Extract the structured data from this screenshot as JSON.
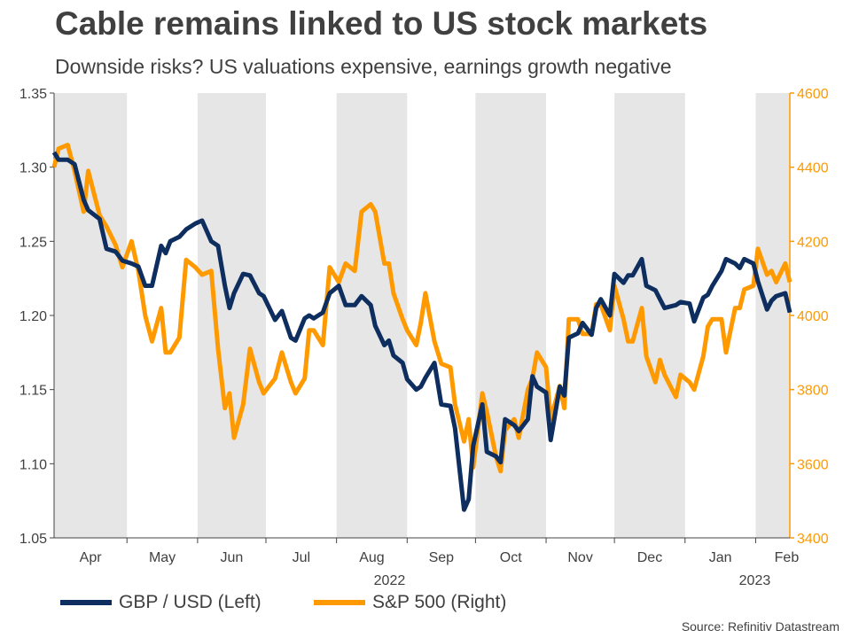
{
  "header": {
    "title": "Cable remains linked to US stock markets",
    "subtitle": "Downside risks? US valuations expensive, earnings growth negative"
  },
  "source": "Source: Refinitiv Datastream",
  "legend": [
    {
      "label": "GBP / USD (Left)",
      "color": "#0d2e5e"
    },
    {
      "label": "S&P 500 (Right)",
      "color": "#ff9900"
    }
  ],
  "chart_data": {
    "type": "line",
    "x_start": "2022-03-30",
    "x_end": "2023-02-16",
    "months": [
      "Apr",
      "May",
      "Jun",
      "Jul",
      "Aug",
      "Sep",
      "Oct",
      "Nov",
      "Dec",
      "Jan",
      "Feb"
    ],
    "years": [
      {
        "label": "2022",
        "under": "Aug"
      },
      {
        "label": "2023",
        "under": "Feb"
      }
    ],
    "shaded_months": [
      "Apr",
      "Jun",
      "Aug",
      "Oct",
      "Dec",
      "Feb"
    ],
    "y_left": {
      "min": 1.05,
      "max": 1.35,
      "ticks": [
        "1.05",
        "1.10",
        "1.15",
        "1.20",
        "1.25",
        "1.30",
        "1.35"
      ]
    },
    "y_right": {
      "min": 3400,
      "max": 4600,
      "ticks": [
        "3400",
        "3600",
        "3800",
        "4000",
        "4200",
        "4400",
        "4600"
      ],
      "color": "#ff9900"
    },
    "legend_position": "bottom",
    "grid": false,
    "series": [
      {
        "name": "GBP / USD (Left)",
        "axis": "left",
        "color": "#0d2e5e",
        "points": [
          [
            "2022-03-30",
            1.31
          ],
          [
            "2022-04-01",
            1.305
          ],
          [
            "2022-04-05",
            1.305
          ],
          [
            "2022-04-08",
            1.302
          ],
          [
            "2022-04-12",
            1.278
          ],
          [
            "2022-04-14",
            1.271
          ],
          [
            "2022-04-19",
            1.265
          ],
          [
            "2022-04-22",
            1.245
          ],
          [
            "2022-04-26",
            1.243
          ],
          [
            "2022-04-29",
            1.237
          ],
          [
            "2022-05-03",
            1.235
          ],
          [
            "2022-05-06",
            1.233
          ],
          [
            "2022-05-09",
            1.22
          ],
          [
            "2022-05-12",
            1.22
          ],
          [
            "2022-05-16",
            1.247
          ],
          [
            "2022-05-18",
            1.242
          ],
          [
            "2022-05-20",
            1.25
          ],
          [
            "2022-05-24",
            1.253
          ],
          [
            "2022-05-27",
            1.258
          ],
          [
            "2022-05-31",
            1.262
          ],
          [
            "2022-06-03",
            1.264
          ],
          [
            "2022-06-07",
            1.25
          ],
          [
            "2022-06-10",
            1.247
          ],
          [
            "2022-06-13",
            1.22
          ],
          [
            "2022-06-15",
            1.205
          ],
          [
            "2022-06-17",
            1.215
          ],
          [
            "2022-06-21",
            1.228
          ],
          [
            "2022-06-24",
            1.227
          ],
          [
            "2022-06-28",
            1.215
          ],
          [
            "2022-06-30",
            1.213
          ],
          [
            "2022-07-05",
            1.197
          ],
          [
            "2022-07-08",
            1.203
          ],
          [
            "2022-07-12",
            1.185
          ],
          [
            "2022-07-14",
            1.183
          ],
          [
            "2022-07-18",
            1.198
          ],
          [
            "2022-07-20",
            1.2
          ],
          [
            "2022-07-22",
            1.198
          ],
          [
            "2022-07-26",
            1.202
          ],
          [
            "2022-07-29",
            1.215
          ],
          [
            "2022-08-02",
            1.22
          ],
          [
            "2022-08-05",
            1.207
          ],
          [
            "2022-08-09",
            1.207
          ],
          [
            "2022-08-12",
            1.213
          ],
          [
            "2022-08-16",
            1.207
          ],
          [
            "2022-08-18",
            1.193
          ],
          [
            "2022-08-22",
            1.18
          ],
          [
            "2022-08-24",
            1.183
          ],
          [
            "2022-08-26",
            1.173
          ],
          [
            "2022-08-30",
            1.168
          ],
          [
            "2022-09-01",
            1.157
          ],
          [
            "2022-09-05",
            1.15
          ],
          [
            "2022-09-07",
            1.152
          ],
          [
            "2022-09-09",
            1.158
          ],
          [
            "2022-09-13",
            1.168
          ],
          [
            "2022-09-16",
            1.14
          ],
          [
            "2022-09-20",
            1.139
          ],
          [
            "2022-09-22",
            1.124
          ],
          [
            "2022-09-26",
            1.069
          ],
          [
            "2022-09-28",
            1.076
          ],
          [
            "2022-09-30",
            1.112
          ],
          [
            "2022-10-04",
            1.14
          ],
          [
            "2022-10-06",
            1.108
          ],
          [
            "2022-10-10",
            1.105
          ],
          [
            "2022-10-12",
            1.101
          ],
          [
            "2022-10-14",
            1.13
          ],
          [
            "2022-10-18",
            1.126
          ],
          [
            "2022-10-20",
            1.122
          ],
          [
            "2022-10-24",
            1.13
          ],
          [
            "2022-10-26",
            1.159
          ],
          [
            "2022-10-28",
            1.152
          ],
          [
            "2022-11-01",
            1.148
          ],
          [
            "2022-11-03",
            1.116
          ],
          [
            "2022-11-07",
            1.152
          ],
          [
            "2022-11-09",
            1.146
          ],
          [
            "2022-11-11",
            1.185
          ],
          [
            "2022-11-15",
            1.188
          ],
          [
            "2022-11-17",
            1.195
          ],
          [
            "2022-11-21",
            1.187
          ],
          [
            "2022-11-23",
            1.205
          ],
          [
            "2022-11-25",
            1.211
          ],
          [
            "2022-11-29",
            1.2
          ],
          [
            "2022-12-01",
            1.228
          ],
          [
            "2022-12-05",
            1.222
          ],
          [
            "2022-12-07",
            1.227
          ],
          [
            "2022-12-09",
            1.227
          ],
          [
            "2022-12-13",
            1.238
          ],
          [
            "2022-12-15",
            1.22
          ],
          [
            "2022-12-19",
            1.217
          ],
          [
            "2022-12-21",
            1.211
          ],
          [
            "2022-12-23",
            1.205
          ],
          [
            "2022-12-28",
            1.207
          ],
          [
            "2022-12-30",
            1.209
          ],
          [
            "2023-01-03",
            1.208
          ],
          [
            "2023-01-05",
            1.196
          ],
          [
            "2023-01-09",
            1.212
          ],
          [
            "2023-01-11",
            1.214
          ],
          [
            "2023-01-13",
            1.22
          ],
          [
            "2023-01-17",
            1.23
          ],
          [
            "2023-01-19",
            1.238
          ],
          [
            "2023-01-23",
            1.235
          ],
          [
            "2023-01-25",
            1.232
          ],
          [
            "2023-01-27",
            1.238
          ],
          [
            "2023-01-31",
            1.235
          ],
          [
            "2023-02-02",
            1.223
          ],
          [
            "2023-02-06",
            1.204
          ],
          [
            "2023-02-08",
            1.21
          ],
          [
            "2023-02-10",
            1.213
          ],
          [
            "2023-02-14",
            1.215
          ],
          [
            "2023-02-16",
            1.202
          ]
        ]
      },
      {
        "name": "S&P 500 (Right)",
        "axis": "right",
        "color": "#ff9900",
        "points": [
          [
            "2022-03-30",
            4400
          ],
          [
            "2022-04-01",
            4450
          ],
          [
            "2022-04-05",
            4460
          ],
          [
            "2022-04-08",
            4390
          ],
          [
            "2022-04-12",
            4280
          ],
          [
            "2022-04-14",
            4390
          ],
          [
            "2022-04-19",
            4270
          ],
          [
            "2022-04-22",
            4240
          ],
          [
            "2022-04-26",
            4190
          ],
          [
            "2022-04-29",
            4130
          ],
          [
            "2022-05-03",
            4200
          ],
          [
            "2022-05-06",
            4120
          ],
          [
            "2022-05-09",
            4000
          ],
          [
            "2022-05-12",
            3930
          ],
          [
            "2022-05-16",
            4020
          ],
          [
            "2022-05-18",
            3900
          ],
          [
            "2022-05-20",
            3900
          ],
          [
            "2022-05-24",
            3940
          ],
          [
            "2022-05-27",
            4150
          ],
          [
            "2022-05-31",
            4130
          ],
          [
            "2022-06-03",
            4110
          ],
          [
            "2022-06-07",
            4120
          ],
          [
            "2022-06-10",
            3910
          ],
          [
            "2022-06-13",
            3750
          ],
          [
            "2022-06-15",
            3790
          ],
          [
            "2022-06-17",
            3670
          ],
          [
            "2022-06-21",
            3760
          ],
          [
            "2022-06-24",
            3910
          ],
          [
            "2022-06-28",
            3820
          ],
          [
            "2022-06-30",
            3790
          ],
          [
            "2022-07-05",
            3830
          ],
          [
            "2022-07-08",
            3900
          ],
          [
            "2022-07-12",
            3820
          ],
          [
            "2022-07-14",
            3790
          ],
          [
            "2022-07-18",
            3830
          ],
          [
            "2022-07-20",
            3960
          ],
          [
            "2022-07-22",
            3960
          ],
          [
            "2022-07-26",
            3920
          ],
          [
            "2022-07-29",
            4130
          ],
          [
            "2022-08-02",
            4090
          ],
          [
            "2022-08-05",
            4140
          ],
          [
            "2022-08-09",
            4120
          ],
          [
            "2022-08-12",
            4280
          ],
          [
            "2022-08-16",
            4300
          ],
          [
            "2022-08-18",
            4280
          ],
          [
            "2022-08-22",
            4140
          ],
          [
            "2022-08-24",
            4140
          ],
          [
            "2022-08-26",
            4060
          ],
          [
            "2022-08-30",
            3990
          ],
          [
            "2022-09-01",
            3960
          ],
          [
            "2022-09-05",
            3920
          ],
          [
            "2022-09-07",
            3980
          ],
          [
            "2022-09-09",
            4060
          ],
          [
            "2022-09-13",
            3930
          ],
          [
            "2022-09-16",
            3870
          ],
          [
            "2022-09-20",
            3860
          ],
          [
            "2022-09-22",
            3760
          ],
          [
            "2022-09-26",
            3660
          ],
          [
            "2022-09-28",
            3720
          ],
          [
            "2022-09-30",
            3590
          ],
          [
            "2022-10-04",
            3790
          ],
          [
            "2022-10-06",
            3740
          ],
          [
            "2022-10-10",
            3620
          ],
          [
            "2022-10-12",
            3580
          ],
          [
            "2022-10-14",
            3690
          ],
          [
            "2022-10-18",
            3720
          ],
          [
            "2022-10-20",
            3670
          ],
          [
            "2022-10-24",
            3800
          ],
          [
            "2022-10-26",
            3830
          ],
          [
            "2022-10-28",
            3900
          ],
          [
            "2022-11-01",
            3860
          ],
          [
            "2022-11-03",
            3720
          ],
          [
            "2022-11-07",
            3810
          ],
          [
            "2022-11-09",
            3750
          ],
          [
            "2022-11-11",
            3990
          ],
          [
            "2022-11-15",
            3990
          ],
          [
            "2022-11-17",
            3950
          ],
          [
            "2022-11-21",
            3950
          ],
          [
            "2022-11-23",
            4030
          ],
          [
            "2022-11-25",
            4030
          ],
          [
            "2022-11-29",
            3960
          ],
          [
            "2022-12-01",
            4080
          ],
          [
            "2022-12-05",
            3990
          ],
          [
            "2022-12-07",
            3930
          ],
          [
            "2022-12-09",
            3930
          ],
          [
            "2022-12-13",
            4020
          ],
          [
            "2022-12-15",
            3890
          ],
          [
            "2022-12-19",
            3820
          ],
          [
            "2022-12-21",
            3880
          ],
          [
            "2022-12-23",
            3840
          ],
          [
            "2022-12-28",
            3780
          ],
          [
            "2022-12-30",
            3840
          ],
          [
            "2023-01-03",
            3820
          ],
          [
            "2023-01-05",
            3800
          ],
          [
            "2023-01-09",
            3890
          ],
          [
            "2023-01-11",
            3970
          ],
          [
            "2023-01-13",
            3990
          ],
          [
            "2023-01-17",
            3990
          ],
          [
            "2023-01-19",
            3900
          ],
          [
            "2023-01-23",
            4020
          ],
          [
            "2023-01-25",
            4020
          ],
          [
            "2023-01-27",
            4070
          ],
          [
            "2023-01-31",
            4080
          ],
          [
            "2023-02-02",
            4180
          ],
          [
            "2023-02-06",
            4110
          ],
          [
            "2023-02-08",
            4120
          ],
          [
            "2023-02-10",
            4090
          ],
          [
            "2023-02-14",
            4140
          ],
          [
            "2023-02-16",
            4090
          ]
        ]
      }
    ]
  }
}
